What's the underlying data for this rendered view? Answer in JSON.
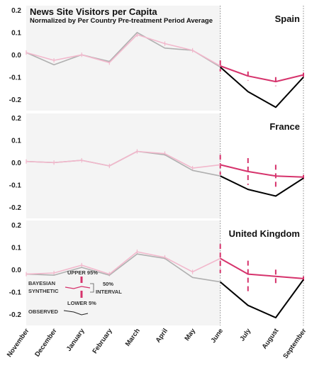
{
  "chart_data": {
    "type": "line",
    "title": "News Site Visitors per Capita",
    "subtitle": "Normalized by Per Country Pre-treatment Period Average",
    "x": [
      "November",
      "December",
      "January",
      "February",
      "March",
      "April",
      "May",
      "June",
      "July",
      "August",
      "September"
    ],
    "treatment_start": "June",
    "ylim": [
      -0.25,
      0.22
    ],
    "yticks": [
      -0.2,
      -0.1,
      0.0,
      0.1,
      0.2
    ],
    "ytick_labels": [
      "-0.2",
      "-0.1",
      "0.0",
      "0.1",
      "0.2"
    ],
    "shaded_pretreatment": true,
    "colors": {
      "observed": "#000000",
      "synthetic": "#d6336c",
      "synthetic_pre": "#f2b8cc",
      "observed_pre": "#b0b0b0",
      "shade": "#f4f4f4",
      "vline": "#888888"
    },
    "panels": [
      {
        "country": "Spain",
        "observed": [
          0.01,
          -0.045,
          0.0,
          -0.03,
          0.1,
          0.03,
          0.02,
          -0.055,
          -0.165,
          -0.235,
          -0.1
        ],
        "synthetic": [
          0.01,
          -0.025,
          0.0,
          -0.035,
          0.09,
          0.05,
          0.02,
          -0.05,
          -0.095,
          -0.12,
          -0.09
        ],
        "upper": [
          0.02,
          -0.015,
          0.01,
          -0.025,
          0.1,
          0.06,
          0.03,
          -0.025,
          -0.075,
          -0.1,
          -0.08
        ],
        "lower": [
          0.0,
          -0.035,
          -0.01,
          -0.045,
          0.08,
          0.04,
          0.01,
          -0.075,
          -0.115,
          -0.14,
          -0.1
        ]
      },
      {
        "country": "France",
        "observed": [
          0.005,
          0.0,
          0.01,
          -0.015,
          0.05,
          0.035,
          -0.035,
          -0.06,
          -0.12,
          -0.15,
          -0.07
        ],
        "synthetic": [
          0.005,
          0.0,
          0.01,
          -0.015,
          0.05,
          0.04,
          -0.025,
          -0.01,
          -0.04,
          -0.06,
          -0.065
        ],
        "upper": [
          0.015,
          0.01,
          0.02,
          -0.005,
          0.06,
          0.05,
          -0.015,
          0.035,
          0.02,
          -0.01,
          -0.055
        ],
        "lower": [
          -0.005,
          -0.01,
          0.0,
          -0.025,
          0.04,
          0.03,
          -0.035,
          -0.055,
          -0.1,
          -0.11,
          -0.075
        ]
      },
      {
        "country": "United Kingdom",
        "observed": [
          -0.02,
          -0.025,
          0.01,
          -0.025,
          0.07,
          0.05,
          -0.035,
          -0.055,
          -0.16,
          -0.215,
          -0.045
        ],
        "synthetic": [
          -0.02,
          -0.015,
          0.02,
          -0.02,
          0.08,
          0.055,
          -0.01,
          0.05,
          -0.02,
          -0.03,
          -0.04
        ],
        "upper": [
          -0.01,
          -0.005,
          0.03,
          -0.01,
          0.09,
          0.065,
          0.0,
          0.115,
          0.04,
          0.0,
          -0.03
        ],
        "lower": [
          -0.03,
          -0.025,
          0.01,
          -0.03,
          0.07,
          0.045,
          -0.02,
          -0.015,
          -0.1,
          -0.07,
          -0.05
        ]
      }
    ],
    "legend": {
      "upper": "UPPER 95%",
      "bayesian": "BAYESIAN",
      "synthetic": "SYNTHETIC",
      "interval_50": "50%",
      "interval": "INTERVAL",
      "lower": "LOWER 5%",
      "observed": "OBSERVED"
    }
  }
}
